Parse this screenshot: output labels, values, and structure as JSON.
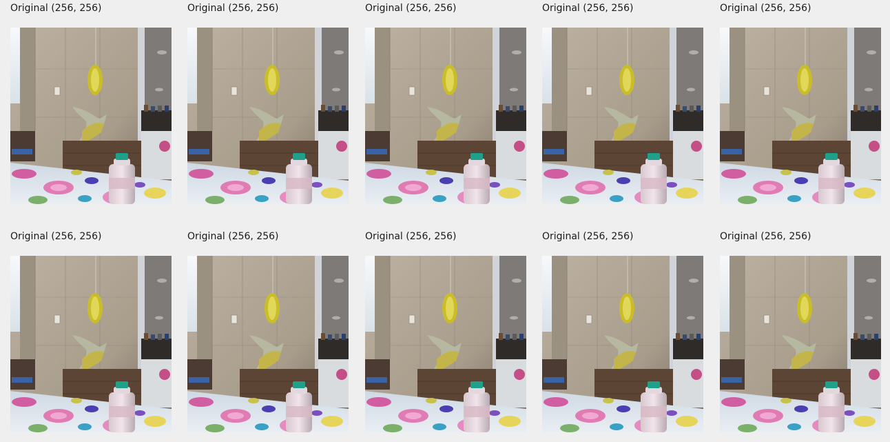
{
  "images": [
    {
      "caption": "Original (256, 256)"
    },
    {
      "caption": "Original (256, 256)"
    },
    {
      "caption": "Original (256, 256)"
    },
    {
      "caption": "Original (256, 256)"
    },
    {
      "caption": "Original (256, 256)"
    },
    {
      "caption": "Original (256, 256)"
    },
    {
      "caption": "Original (256, 256)"
    },
    {
      "caption": "Original (256, 256)"
    },
    {
      "caption": "Original (256, 256)"
    },
    {
      "caption": "Original (256, 256)"
    }
  ],
  "colors": {
    "background": "#efefef",
    "wall": "#b4a896",
    "table_cloth": "#dfe6ee",
    "ornament": "#c9be2a",
    "bottle_cap": "#1ea08a"
  }
}
